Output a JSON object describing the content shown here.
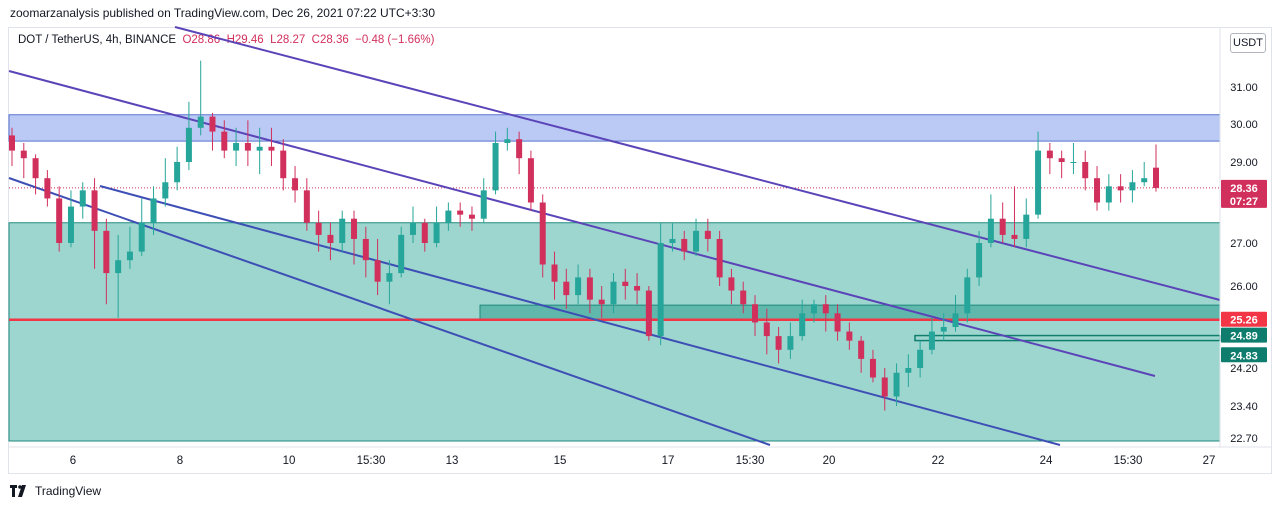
{
  "header": {
    "published": "zoomarzanalysis published on TradingView.com, Dec 26, 2021 07:22 UTC+3:30"
  },
  "legend": {
    "symbol": "DOT / TetherUS, 4h, BINANCE",
    "open": "O28.86",
    "high": "H29.46",
    "low": "L28.27",
    "close": "C28.36",
    "change": "−0.48 (−1.66%)"
  },
  "currency_button": "USDT",
  "brand": "TradingView",
  "colors": {
    "up": "#26a69a",
    "down": "#d1305c",
    "zone_top": "#b3c5f5",
    "zone_main": "#9dd6cf",
    "support_line": "#f23645",
    "channel": "#5b44b8"
  },
  "chart_data": {
    "type": "candlestick",
    "y_axis": {
      "ticks": [
        "31.00",
        "30.00",
        "29.00",
        "27.00",
        "26.00",
        "24.20",
        "23.40",
        "22.70"
      ],
      "tick_values": [
        31.0,
        30.0,
        29.0,
        27.0,
        26.0,
        24.2,
        23.4,
        22.7
      ]
    },
    "x_axis": {
      "ticks": [
        "6",
        "8",
        "10",
        "15:30",
        "13",
        "15",
        "17",
        "15:30",
        "20",
        "22",
        "24",
        "15:30",
        "27"
      ]
    },
    "price_labels": [
      {
        "value": 28.36,
        "text": "28.36",
        "sub": "07:27",
        "color": "#d1305c"
      },
      {
        "value": 25.26,
        "text": "25.26",
        "color": "#f23645"
      },
      {
        "value": 24.89,
        "text": "24.89",
        "color": "#0f7d6e"
      },
      {
        "value": 24.83,
        "text": "24.83",
        "color": "#0f7d6e"
      }
    ],
    "candles": [
      [
        29.7,
        29.3,
        29.9,
        28.9
      ],
      [
        29.3,
        29.1,
        29.5,
        28.6
      ],
      [
        29.1,
        28.6,
        29.2,
        28.2
      ],
      [
        28.6,
        28.1,
        28.8,
        27.9
      ],
      [
        28.1,
        27.0,
        28.4,
        26.8
      ],
      [
        27.0,
        27.9,
        28.3,
        26.9
      ],
      [
        27.9,
        28.3,
        28.5,
        27.6
      ],
      [
        28.3,
        27.3,
        28.6,
        26.4
      ],
      [
        27.3,
        26.3,
        27.6,
        25.6
      ],
      [
        26.3,
        26.6,
        27.2,
        25.3
      ],
      [
        26.6,
        26.8,
        27.4,
        26.4
      ],
      [
        26.8,
        27.5,
        28.1,
        26.7
      ],
      [
        27.5,
        28.1,
        28.4,
        27.2
      ],
      [
        28.1,
        28.5,
        29.1,
        27.9
      ],
      [
        28.5,
        29.0,
        29.4,
        28.3
      ],
      [
        29.0,
        29.9,
        30.6,
        28.8
      ],
      [
        29.9,
        30.2,
        31.4,
        29.7
      ],
      [
        30.2,
        29.8,
        30.3,
        29.3
      ],
      [
        29.8,
        29.3,
        30.1,
        29.1
      ],
      [
        29.3,
        29.5,
        29.9,
        28.9
      ],
      [
        29.5,
        29.3,
        30.1,
        28.9
      ],
      [
        29.3,
        29.4,
        29.9,
        28.7
      ],
      [
        29.4,
        29.3,
        29.9,
        28.9
      ],
      [
        29.3,
        28.6,
        29.6,
        28.3
      ],
      [
        28.6,
        28.3,
        28.9,
        28.0
      ],
      [
        28.3,
        27.5,
        28.6,
        27.3
      ],
      [
        27.5,
        27.2,
        27.8,
        26.8
      ],
      [
        27.2,
        27.0,
        27.5,
        26.6
      ],
      [
        27.0,
        27.6,
        27.8,
        26.8
      ],
      [
        27.6,
        27.1,
        27.8,
        26.5
      ],
      [
        27.1,
        26.6,
        27.4,
        26.2
      ],
      [
        26.6,
        26.1,
        27.1,
        25.8
      ],
      [
        26.1,
        26.3,
        26.6,
        25.6
      ],
      [
        26.3,
        27.2,
        27.4,
        26.2
      ],
      [
        27.2,
        27.5,
        27.9,
        27.0
      ],
      [
        27.5,
        27.0,
        27.6,
        26.8
      ],
      [
        27.0,
        27.5,
        27.9,
        26.9
      ],
      [
        27.5,
        27.8,
        28.0,
        27.3
      ],
      [
        27.8,
        27.7,
        28.0,
        27.4
      ],
      [
        27.7,
        27.6,
        27.9,
        27.3
      ],
      [
        27.6,
        28.3,
        28.6,
        27.5
      ],
      [
        28.3,
        29.5,
        29.8,
        28.2
      ],
      [
        29.5,
        29.6,
        29.9,
        29.3
      ],
      [
        29.6,
        29.1,
        29.8,
        28.7
      ],
      [
        29.1,
        28.0,
        29.3,
        27.8
      ],
      [
        28.0,
        26.5,
        28.2,
        26.2
      ],
      [
        26.5,
        26.1,
        26.8,
        25.7
      ],
      [
        26.1,
        25.8,
        26.4,
        25.5
      ],
      [
        25.8,
        26.2,
        26.5,
        25.6
      ],
      [
        26.2,
        25.7,
        26.4,
        25.4
      ],
      [
        25.7,
        25.6,
        26.0,
        25.3
      ],
      [
        25.6,
        26.1,
        26.3,
        25.4
      ],
      [
        26.1,
        26.0,
        26.4,
        25.7
      ],
      [
        26.0,
        25.9,
        26.3,
        25.6
      ],
      [
        25.9,
        24.9,
        26.0,
        24.8
      ],
      [
        24.9,
        27.0,
        27.5,
        24.7
      ],
      [
        27.0,
        27.1,
        27.5,
        26.8
      ],
      [
        27.1,
        26.8,
        27.3,
        26.6
      ],
      [
        26.8,
        27.3,
        27.6,
        26.7
      ],
      [
        27.3,
        27.1,
        27.6,
        26.8
      ],
      [
        27.1,
        26.2,
        27.3,
        26.0
      ],
      [
        26.2,
        25.9,
        26.4,
        25.6
      ],
      [
        25.9,
        25.6,
        26.1,
        25.4
      ],
      [
        25.6,
        25.2,
        25.8,
        24.9
      ],
      [
        25.2,
        24.9,
        25.5,
        24.5
      ],
      [
        24.9,
        24.6,
        25.1,
        24.3
      ],
      [
        24.6,
        24.9,
        25.2,
        24.4
      ],
      [
        24.9,
        25.4,
        25.7,
        24.8
      ],
      [
        25.4,
        25.6,
        25.7,
        25.2
      ],
      [
        25.6,
        25.4,
        25.8,
        25.0
      ],
      [
        25.4,
        25.0,
        25.6,
        24.8
      ],
      [
        25.0,
        24.8,
        25.2,
        24.6
      ],
      [
        24.8,
        24.4,
        24.9,
        24.1
      ],
      [
        24.4,
        24.0,
        24.6,
        23.9
      ],
      [
        24.0,
        23.6,
        24.2,
        23.3
      ],
      [
        23.6,
        24.1,
        24.3,
        23.4
      ],
      [
        24.1,
        24.2,
        24.5,
        23.8
      ],
      [
        24.2,
        24.6,
        24.8,
        24.0
      ],
      [
        24.6,
        25.0,
        25.3,
        24.5
      ],
      [
        25.0,
        25.1,
        25.4,
        24.8
      ],
      [
        25.1,
        25.4,
        25.8,
        25.0
      ],
      [
        25.4,
        26.2,
        26.4,
        25.2
      ],
      [
        26.2,
        27.0,
        27.3,
        26.0
      ],
      [
        27.0,
        27.6,
        28.2,
        26.9
      ],
      [
        27.6,
        27.2,
        28.0,
        27.0
      ],
      [
        27.2,
        27.1,
        28.4,
        26.9
      ],
      [
        27.1,
        27.7,
        28.1,
        26.9
      ],
      [
        27.7,
        29.3,
        29.8,
        27.6
      ],
      [
        29.3,
        29.1,
        29.5,
        28.7
      ],
      [
        29.1,
        29.0,
        29.3,
        28.6
      ],
      [
        29.0,
        29.0,
        29.5,
        28.7
      ],
      [
        29.0,
        28.6,
        29.3,
        28.3
      ],
      [
        28.6,
        28.0,
        28.9,
        27.8
      ],
      [
        28.0,
        28.4,
        28.7,
        27.8
      ],
      [
        28.4,
        28.3,
        28.7,
        28.0
      ],
      [
        28.3,
        28.5,
        28.8,
        28.0
      ],
      [
        28.5,
        28.6,
        29.0,
        28.4
      ],
      [
        28.86,
        28.36,
        29.46,
        28.27
      ]
    ]
  }
}
